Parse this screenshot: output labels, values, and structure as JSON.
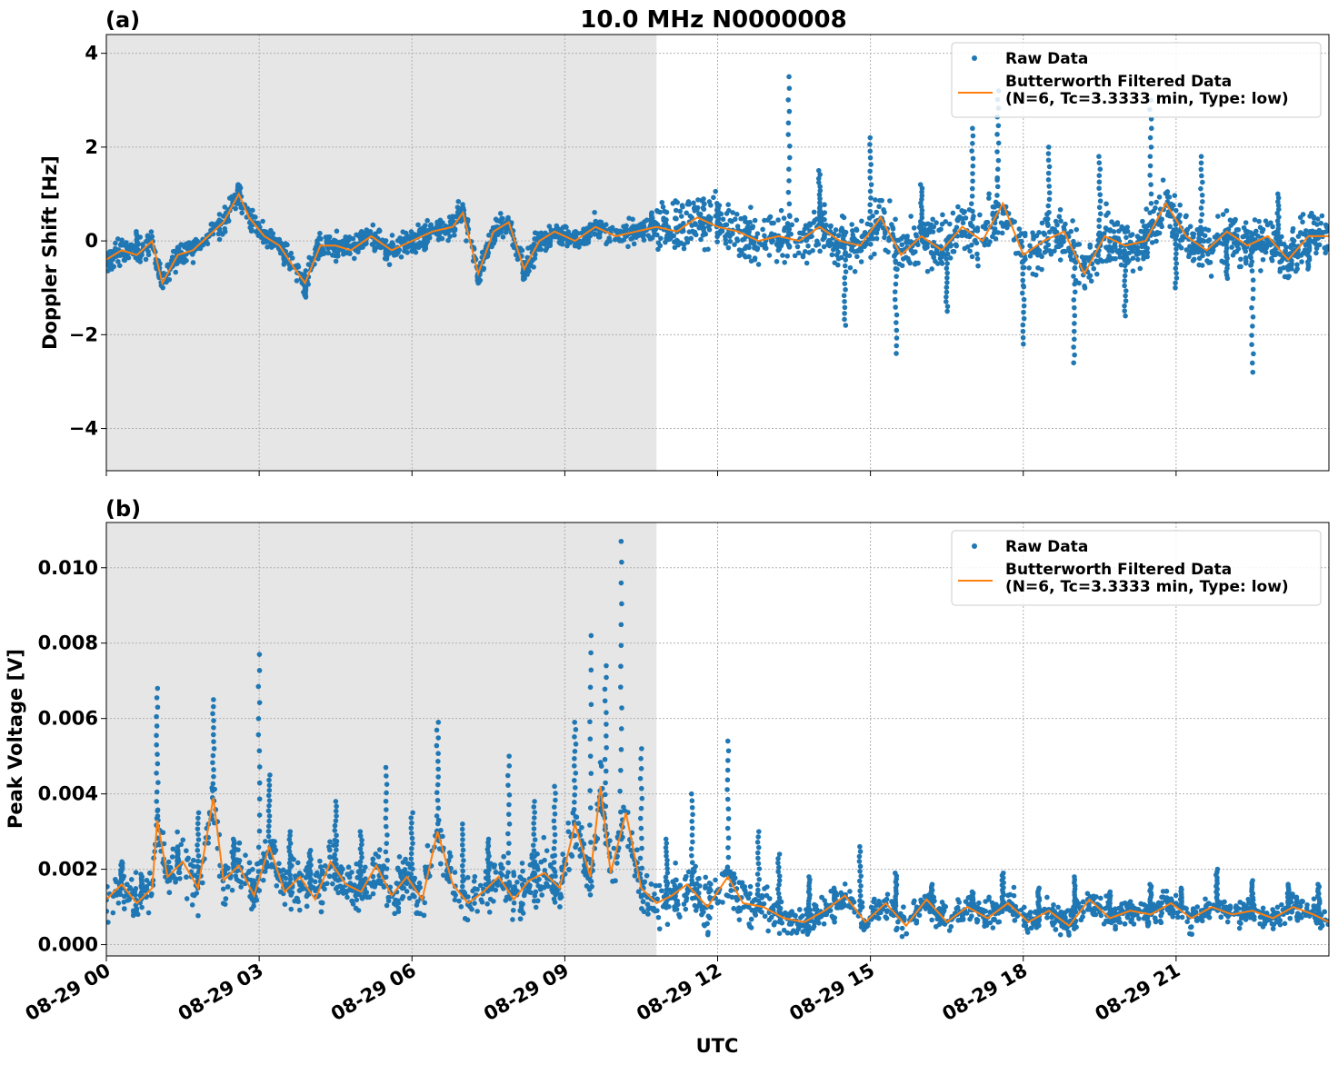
{
  "figure": {
    "title": "10.0 MHz N0000008",
    "xlabel": "UTC"
  },
  "colors": {
    "raw": "#1f77b4",
    "filtered": "#ff7f0e",
    "shade": "#e6e6e6",
    "grid": "#b0b0b0"
  },
  "chart_data": [
    {
      "type": "scatter",
      "panel_label": "(a)",
      "ylabel": "Doppler Shift [Hz]",
      "xlim_hours": [
        0,
        24
      ],
      "ylim": [
        -4.9,
        4.4
      ],
      "yticks": [
        -4,
        -2,
        0,
        2,
        4
      ],
      "ytick_labels": [
        "−4",
        "−2",
        "0",
        "2",
        "4"
      ],
      "xticks_hours": [
        0,
        3,
        6,
        9,
        12,
        15,
        18,
        21
      ],
      "xtick_labels": [
        "08-29 00",
        "08-29 03",
        "08-29 06",
        "08-29 09",
        "08-29 12",
        "08-29 15",
        "08-29 18",
        "08-29 21"
      ],
      "grid": true,
      "legend_position": "top-right",
      "shaded_region_hours": [
        0,
        10.8
      ],
      "series": [
        {
          "name": "Raw Data",
          "kind": "points",
          "x": [
            0.2,
            0.6,
            1.0,
            1.4,
            2.0,
            2.6,
            3.0,
            3.5,
            3.9,
            4.5,
            5.0,
            5.5,
            6.0,
            6.5,
            7.0,
            7.3,
            7.8,
            8.2,
            8.7,
            9.2,
            9.7,
            10.2,
            10.7,
            11.3,
            12.0,
            12.6,
            13.2,
            13.4,
            14.0,
            14.5,
            15.0,
            15.5,
            16.0,
            16.5,
            17.0,
            17.5,
            18.0,
            18.5,
            19.0,
            19.5,
            20.0,
            20.5,
            21.0,
            21.5,
            22.0,
            22.5,
            23.0,
            23.6
          ],
          "y": [
            -0.3,
            0.2,
            -0.6,
            -0.2,
            0.1,
            1.2,
            0.2,
            -0.5,
            -1.2,
            0.0,
            0.2,
            -0.3,
            0.1,
            0.4,
            0.7,
            -0.9,
            0.3,
            -0.8,
            -0.1,
            0.2,
            0.4,
            0.1,
            0.6,
            0.2,
            0.8,
            0.3,
            -0.2,
            3.5,
            1.5,
            -1.8,
            2.2,
            -2.4,
            1.2,
            -1.5,
            2.4,
            3.2,
            -2.2,
            2.0,
            -2.6,
            1.8,
            -1.6,
            3.0,
            -1.0,
            1.8,
            -0.8,
            -2.8,
            1.0,
            -0.6
          ]
        },
        {
          "name": "Butterworth Filtered Data\n(N=6, Tc=3.3333 min, Type: low)",
          "kind": "line",
          "x": [
            0.0,
            0.3,
            0.6,
            0.9,
            1.1,
            1.4,
            1.7,
            2.0,
            2.3,
            2.6,
            2.8,
            3.1,
            3.4,
            3.7,
            3.9,
            4.2,
            4.5,
            4.8,
            5.2,
            5.6,
            6.0,
            6.4,
            6.8,
            7.0,
            7.3,
            7.6,
            7.9,
            8.2,
            8.5,
            8.8,
            9.2,
            9.6,
            10.0,
            10.4,
            10.8,
            11.2,
            11.6,
            12.0,
            12.4,
            12.8,
            13.2,
            13.6,
            14.0,
            14.4,
            14.8,
            15.2,
            15.6,
            16.0,
            16.4,
            16.8,
            17.2,
            17.6,
            18.0,
            18.4,
            18.8,
            19.2,
            19.6,
            20.0,
            20.4,
            20.8,
            21.2,
            21.6,
            22.0,
            22.4,
            22.8,
            23.2,
            23.6,
            24.0
          ],
          "y": [
            -0.4,
            -0.2,
            -0.3,
            0.0,
            -0.9,
            -0.3,
            -0.2,
            0.1,
            0.4,
            1.0,
            0.5,
            0.1,
            -0.1,
            -0.6,
            -0.9,
            -0.1,
            -0.1,
            -0.2,
            0.1,
            -0.2,
            0.0,
            0.2,
            0.3,
            0.6,
            -0.7,
            0.2,
            0.4,
            -0.6,
            0.0,
            0.2,
            0.0,
            0.3,
            0.1,
            0.2,
            0.3,
            0.2,
            0.5,
            0.3,
            0.2,
            0.0,
            0.1,
            0.0,
            0.3,
            0.0,
            -0.1,
            0.5,
            -0.3,
            0.1,
            -0.2,
            0.3,
            0.0,
            0.8,
            -0.3,
            0.0,
            0.2,
            -0.7,
            0.1,
            -0.1,
            0.0,
            0.8,
            0.1,
            -0.2,
            0.2,
            -0.1,
            0.1,
            -0.4,
            0.1,
            0.1
          ]
        }
      ]
    },
    {
      "type": "scatter",
      "panel_label": "(b)",
      "ylabel": "Peak Voltage [V]",
      "xlim_hours": [
        0,
        24
      ],
      "ylim": [
        -0.0003,
        0.0112
      ],
      "yticks": [
        0.0,
        0.002,
        0.004,
        0.006,
        0.008,
        0.01
      ],
      "ytick_labels": [
        "0.000",
        "0.002",
        "0.004",
        "0.006",
        "0.008",
        "0.010"
      ],
      "xticks_hours": [
        0,
        3,
        6,
        9,
        12,
        15,
        18,
        21
      ],
      "xtick_labels": [
        "08-29 00",
        "08-29 03",
        "08-29 06",
        "08-29 09",
        "08-29 12",
        "08-29 15",
        "08-29 18",
        "08-29 21"
      ],
      "grid": true,
      "legend_position": "top-right",
      "shaded_region_hours": [
        0,
        10.8
      ],
      "series": [
        {
          "name": "Raw Data",
          "kind": "points",
          "x": [
            0.3,
            0.7,
            1.0,
            1.4,
            1.8,
            2.1,
            2.5,
            3.0,
            3.2,
            3.6,
            4.0,
            4.5,
            5.0,
            5.5,
            6.0,
            6.5,
            7.0,
            7.5,
            7.9,
            8.4,
            8.8,
            9.2,
            9.5,
            9.8,
            10.1,
            10.5,
            11.0,
            11.5,
            12.2,
            12.8,
            13.2,
            13.8,
            14.3,
            14.8,
            15.5,
            16.2,
            17.0,
            17.6,
            18.3,
            19.0,
            19.7,
            20.5,
            21.1,
            21.8,
            22.5,
            23.2,
            23.8
          ],
          "y": [
            0.0022,
            0.0018,
            0.0068,
            0.0025,
            0.0035,
            0.0065,
            0.0028,
            0.0077,
            0.0045,
            0.003,
            0.0025,
            0.0038,
            0.003,
            0.0047,
            0.0035,
            0.0059,
            0.0032,
            0.0028,
            0.005,
            0.0038,
            0.0042,
            0.0059,
            0.0082,
            0.0074,
            0.0107,
            0.0052,
            0.0028,
            0.004,
            0.0054,
            0.003,
            0.0024,
            0.0018,
            0.0015,
            0.0026,
            0.0019,
            0.0016,
            0.0014,
            0.0019,
            0.0015,
            0.0018,
            0.0014,
            0.0016,
            0.0015,
            0.002,
            0.0017,
            0.0016,
            0.0016
          ]
        },
        {
          "name": "Butterworth Filtered Data\n(N=6, Tc=3.3333 min, Type: low)",
          "kind": "line",
          "x": [
            0.0,
            0.3,
            0.6,
            0.9,
            1.0,
            1.2,
            1.5,
            1.8,
            2.1,
            2.3,
            2.6,
            2.9,
            3.2,
            3.5,
            3.8,
            4.1,
            4.4,
            4.7,
            5.0,
            5.3,
            5.6,
            5.9,
            6.2,
            6.5,
            6.8,
            7.1,
            7.4,
            7.7,
            8.0,
            8.3,
            8.6,
            8.9,
            9.2,
            9.5,
            9.7,
            9.9,
            10.2,
            10.5,
            10.8,
            11.1,
            11.4,
            11.8,
            12.2,
            12.5,
            12.9,
            13.3,
            13.7,
            14.1,
            14.5,
            14.9,
            15.3,
            15.7,
            16.1,
            16.5,
            16.9,
            17.3,
            17.7,
            18.1,
            18.5,
            18.9,
            19.3,
            19.7,
            20.1,
            20.5,
            20.9,
            21.3,
            21.7,
            22.1,
            22.5,
            22.9,
            23.3,
            23.7,
            24.0
          ],
          "y": [
            0.0012,
            0.0016,
            0.0011,
            0.0015,
            0.0033,
            0.0018,
            0.0022,
            0.0015,
            0.0039,
            0.0017,
            0.0021,
            0.0013,
            0.0026,
            0.0014,
            0.0018,
            0.0012,
            0.0022,
            0.0016,
            0.0014,
            0.0021,
            0.0013,
            0.0018,
            0.0012,
            0.003,
            0.0016,
            0.0011,
            0.0014,
            0.0018,
            0.0012,
            0.0017,
            0.0019,
            0.0015,
            0.0032,
            0.0018,
            0.0042,
            0.0019,
            0.0035,
            0.0015,
            0.0011,
            0.0013,
            0.0016,
            0.001,
            0.0018,
            0.0011,
            0.001,
            0.0007,
            0.0006,
            0.0009,
            0.0013,
            0.0006,
            0.0011,
            0.0005,
            0.0012,
            0.0006,
            0.001,
            0.0007,
            0.0011,
            0.0006,
            0.0009,
            0.0005,
            0.0012,
            0.0007,
            0.0009,
            0.0008,
            0.0011,
            0.0007,
            0.001,
            0.0008,
            0.0009,
            0.0007,
            0.001,
            0.0008,
            0.0006
          ]
        }
      ]
    }
  ]
}
